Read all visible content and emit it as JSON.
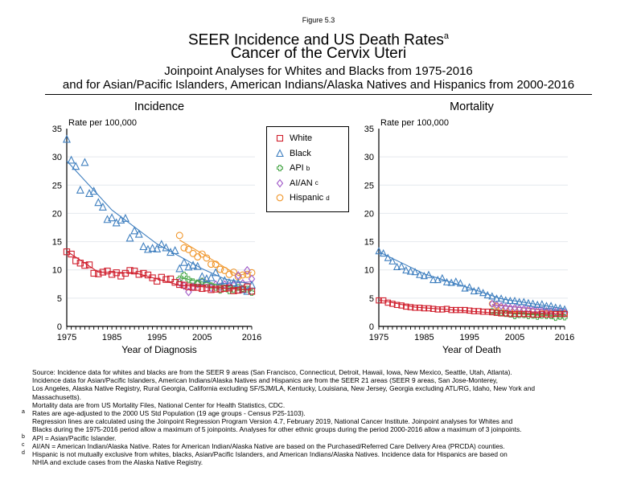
{
  "header": {
    "figure_label": "Figure 5.3",
    "title": "SEER Incidence and US Death Rates",
    "title_sup": "a",
    "title_line2": "Cancer of the Cervix Uteri",
    "subtitle_line1": "Joinpoint Analyses for Whites and Blacks from 1975-2016",
    "subtitle_line2": "and for Asian/Pacific Islanders, American Indians/Alaska Natives and Hispanics from 2000-2016"
  },
  "legend": {
    "items": [
      {
        "label": "White",
        "sup": "",
        "marker": "square",
        "color": "#d0202e"
      },
      {
        "label": "Black",
        "sup": "",
        "marker": "triangle",
        "color": "#3f7fbf"
      },
      {
        "label": "API",
        "sup": "b",
        "marker": "cross",
        "color": "#4aa84a"
      },
      {
        "label": "AI/AN",
        "sup": "c",
        "marker": "diamond",
        "color": "#a05ac8"
      },
      {
        "label": "Hispanic",
        "sup": "d",
        "marker": "circle",
        "color": "#f0962a"
      }
    ]
  },
  "chart_data": [
    {
      "type": "scatter",
      "title": "Incidence",
      "ylabel": "Rate per 100,000",
      "xlabel": "Year of Diagnosis",
      "xlim": [
        1975,
        2016
      ],
      "ylim": [
        0,
        35
      ],
      "xticks": [
        1975,
        1985,
        1995,
        2005,
        2016
      ],
      "yticks": [
        0,
        5,
        10,
        15,
        20,
        25,
        30,
        35
      ],
      "grid": true,
      "series": [
        {
          "name": "White",
          "marker": "square",
          "color": "#d0202e",
          "x_start": 1975,
          "values": [
            13.2,
            12.8,
            11.6,
            11.2,
            10.8,
            10.9,
            9.4,
            9.3,
            9.6,
            9.8,
            9.2,
            9.5,
            8.9,
            9.4,
            9.9,
            9.8,
            9.2,
            9.4,
            9.1,
            8.6,
            8.0,
            8.7,
            8.3,
            8.4,
            7.8,
            7.4,
            7.3,
            7.0,
            6.9,
            6.9,
            6.7,
            6.8,
            6.5,
            6.6,
            6.6,
            6.7,
            6.8,
            6.3,
            6.4,
            6.6,
            7.0,
            6.2
          ],
          "trend": [
            [
              1975,
              13.3
            ],
            [
              1982,
              9.6
            ],
            [
              1990,
              9.5
            ],
            [
              2000,
              7.3
            ],
            [
              2016,
              6.4
            ]
          ]
        },
        {
          "name": "Black",
          "marker": "triangle",
          "color": "#3f7fbf",
          "x_start": 1975,
          "values": [
            33.1,
            29.4,
            28.3,
            24.1,
            29.0,
            23.5,
            23.9,
            21.9,
            21.1,
            18.9,
            19.2,
            18.3,
            18.8,
            19.1,
            15.6,
            16.9,
            16.3,
            14.1,
            13.6,
            13.8,
            13.7,
            14.5,
            13.9,
            13.1,
            13.4,
            10.2,
            11.3,
            10.5,
            10.8,
            10.6,
            8.8,
            8.4,
            8.6,
            9.5,
            8.0,
            8.1,
            7.7,
            7.7,
            7.6,
            6.5,
            6.2,
            7.3
          ],
          "trend": [
            [
              1975,
              29.3
            ],
            [
              1985,
              20.6
            ],
            [
              1995,
              14.6
            ],
            [
              2005,
              10.2
            ],
            [
              2010,
              8.4
            ],
            [
              2016,
              7.5
            ]
          ]
        },
        {
          "name": "API",
          "marker": "cross",
          "color": "#4aa84a",
          "x_start": 2000,
          "values": [
            8.4,
            9.1,
            8.3,
            7.9,
            7.7,
            8.0,
            7.5,
            7.2,
            6.9,
            6.4,
            6.8,
            6.3,
            6.5,
            6.9,
            6.7,
            6.6,
            6.0
          ],
          "trend": [
            [
              2000,
              8.6
            ],
            [
              2016,
              6.3
            ]
          ]
        },
        {
          "name": "AI/AN",
          "marker": "diamond",
          "color": "#a05ac8",
          "x_start": 2000,
          "values": [
            7.8,
            7.2,
            6.1,
            7.0,
            7.5,
            7.9,
            7.5,
            6.8,
            7.4,
            7.0,
            7.4,
            7.1,
            7.4,
            9.0,
            7.6,
            9.9,
            8.4
          ],
          "trend": [
            [
              2000,
              7.1
            ],
            [
              2016,
              7.9
            ]
          ]
        },
        {
          "name": "Hispanic",
          "marker": "circle",
          "color": "#f0962a",
          "x_start": 2000,
          "values": [
            16.1,
            13.9,
            13.6,
            12.9,
            12.3,
            12.8,
            12.1,
            11.0,
            11.0,
            10.1,
            9.9,
            9.2,
            9.6,
            8.8,
            9.1,
            9.2,
            9.5
          ],
          "trend": [
            [
              2000,
              15.3
            ],
            [
              2013,
              9.0
            ],
            [
              2016,
              9.6
            ]
          ]
        }
      ]
    },
    {
      "type": "scatter",
      "title": "Mortality",
      "ylabel": "Rate per 100,000",
      "xlabel": "Year of Death",
      "xlim": [
        1975,
        2016
      ],
      "ylim": [
        0,
        35
      ],
      "xticks": [
        1975,
        1985,
        1995,
        2005,
        2016
      ],
      "yticks": [
        0,
        5,
        10,
        15,
        20,
        25,
        30,
        35
      ],
      "grid": true,
      "series": [
        {
          "name": "White",
          "marker": "square",
          "color": "#d0202e",
          "x_start": 1975,
          "values": [
            4.6,
            4.6,
            4.2,
            4.0,
            3.8,
            3.7,
            3.5,
            3.4,
            3.3,
            3.3,
            3.2,
            3.2,
            3.1,
            3.0,
            3.0,
            3.1,
            2.9,
            2.9,
            2.9,
            2.9,
            2.8,
            2.7,
            2.7,
            2.6,
            2.6,
            2.5,
            2.4,
            2.3,
            2.3,
            2.2,
            2.2,
            2.2,
            2.2,
            2.2,
            2.1,
            2.1,
            2.2,
            2.1,
            2.1,
            2.2,
            2.2,
            2.2
          ],
          "trend": [
            [
              1975,
              4.7
            ],
            [
              1983,
              3.4
            ],
            [
              2000,
              2.4
            ],
            [
              2016,
              2.2
            ]
          ]
        },
        {
          "name": "Black",
          "marker": "triangle",
          "color": "#3f7fbf",
          "x_start": 1975,
          "values": [
            13.3,
            12.9,
            12.1,
            11.5,
            10.5,
            10.6,
            9.9,
            9.7,
            9.6,
            9.1,
            8.9,
            9.1,
            8.2,
            8.2,
            8.5,
            7.8,
            7.7,
            7.9,
            7.6,
            6.7,
            6.9,
            6.2,
            6.3,
            5.9,
            5.5,
            5.3,
            4.9,
            4.9,
            4.6,
            4.5,
            4.5,
            4.3,
            4.3,
            4.1,
            4.0,
            3.8,
            3.9,
            3.6,
            3.6,
            3.3,
            3.2,
            3.0
          ],
          "trend": [
            [
              1975,
              13.2
            ],
            [
              1985,
              9.3
            ],
            [
              1995,
              6.8
            ],
            [
              2002,
              4.9
            ],
            [
              2016,
              3.1
            ]
          ]
        },
        {
          "name": "API",
          "marker": "cross",
          "color": "#4aa84a",
          "x_start": 2000,
          "values": [
            2.7,
            2.5,
            2.4,
            2.2,
            2.1,
            1.8,
            2.0,
            2.0,
            1.8,
            1.9,
            1.7,
            1.9,
            1.8,
            1.8,
            1.5,
            1.7,
            1.6
          ],
          "trend": [
            [
              2000,
              2.5
            ],
            [
              2016,
              1.7
            ]
          ]
        },
        {
          "name": "AI/AN",
          "marker": "diamond",
          "color": "#a05ac8",
          "x_start": 2000,
          "values": [
            4.0,
            3.8,
            3.6,
            3.4,
            3.3,
            3.3,
            3.2,
            3.1,
            3.1,
            2.9,
            2.9,
            2.8,
            2.7,
            2.7,
            2.6,
            2.6,
            2.5
          ],
          "trend": [
            [
              2000,
              3.8
            ],
            [
              2016,
              2.6
            ]
          ]
        },
        {
          "name": "Hispanic",
          "marker": "circle",
          "color": "#f0962a",
          "x_start": 2000,
          "values": [
            4.0,
            3.6,
            3.3,
            3.2,
            3.0,
            3.0,
            2.9,
            2.8,
            2.8,
            2.6,
            2.6,
            2.5,
            2.5,
            2.4,
            2.4,
            2.4,
            2.3
          ],
          "trend": [
            [
              2000,
              3.9
            ],
            [
              2016,
              2.4
            ]
          ]
        }
      ]
    }
  ],
  "notes": [
    {
      "marker": "",
      "text": "Source:  Incidence data for whites and blacks are from the SEER 9 areas (San Francisco, Connecticut, Detroit, Hawaii, Iowa, New Mexico, Seattle, Utah, Atlanta)."
    },
    {
      "marker": "",
      "text": "Incidence data for Asian/Pacific Islanders, American Indians/Alaska Natives and Hispanics are from the SEER 21 areas (SEER 9 areas, San Jose-Monterey,"
    },
    {
      "marker": "",
      "text": "Los Angeles, Alaska Native Registry, Rural Georgia, California excluding SF/SJM/LA, Kentucky, Louisiana, New Jersey, Georgia excluding ATL/RG, Idaho, New York and"
    },
    {
      "marker": "",
      "text": "Massachusetts)."
    },
    {
      "marker": "",
      "text": "Mortality data are from US Mortality Files, National Center for Health Statistics, CDC."
    },
    {
      "marker": "a",
      "text": "Rates are age-adjusted to the 2000 US Std Population (19 age groups - Census P25-1103)."
    },
    {
      "marker": "",
      "text": "Regression lines are calculated using the Joinpoint Regression Program Version 4.7, February 2019, National Cancer Institute.  Joinpoint analyses for Whites and"
    },
    {
      "marker": "",
      "text": "Blacks during the 1975-2016 period allow a maximum of 5 joinpoints. Analyses for other ethnic groups during the period 2000-2016 allow a maximum of 3 joinpoints."
    },
    {
      "marker": "b",
      "text": "API = Asian/Pacific Islander."
    },
    {
      "marker": "c",
      "text": "AI/AN = American Indian/Alaska Native.  Rates for American Indian/Alaska Native are based on the Purchased/Referred Care Delivery Area (PRCDA) counties."
    },
    {
      "marker": "d",
      "text": "Hispanic is not mutually exclusive from whites, blacks, Asian/Pacific Islanders, and American Indians/Alaska Natives.  Incidence data for Hispanics are based on"
    },
    {
      "marker": "",
      "text": "NHIA and exclude cases from the Alaska Native Registry."
    }
  ]
}
